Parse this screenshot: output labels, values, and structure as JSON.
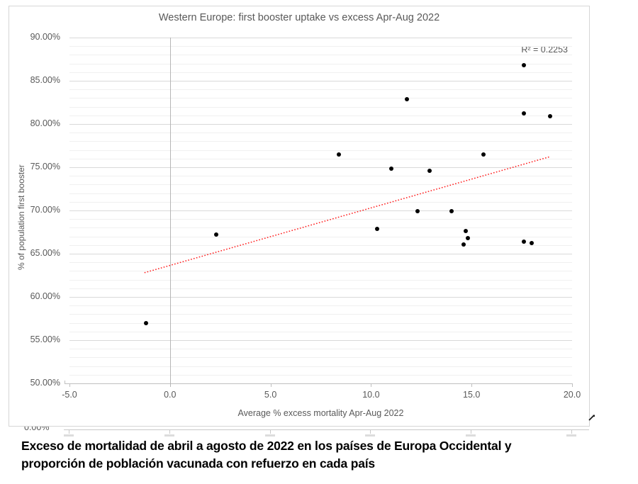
{
  "chart_data": {
    "type": "scatter",
    "title": "Western Europe: first booster uptake vs excess Apr-Aug 2022",
    "xlabel": "Average % excess mortality Apr-Aug 2022",
    "ylabel": "% of population first booster",
    "xlim": [
      -5,
      20
    ],
    "ylim": [
      50,
      90
    ],
    "x_tick_values": [
      -5,
      0,
      5,
      10,
      15,
      20
    ],
    "x_tick_labels": [
      "-5.0",
      "0.0",
      "5.0",
      "10.0",
      "15.0",
      "20.0"
    ],
    "y_tick_values": [
      90,
      85,
      80,
      75,
      70,
      65,
      60,
      55,
      50
    ],
    "y_tick_labels": [
      "90.00%",
      "85.00%",
      "80.00%",
      "75.00%",
      "70.00%",
      "65.00%",
      "60.00%",
      "55.00%",
      "50.00%"
    ],
    "grid": {
      "minor_step": 1,
      "major_step": 5
    },
    "legend_position": "none",
    "r_squared_label": "R² = 0.2253",
    "points": [
      {
        "x": -1.2,
        "y": 57.0
      },
      {
        "x": 2.3,
        "y": 67.2
      },
      {
        "x": 8.4,
        "y": 76.5
      },
      {
        "x": 10.3,
        "y": 67.9
      },
      {
        "x": 11.0,
        "y": 74.8
      },
      {
        "x": 11.8,
        "y": 82.9
      },
      {
        "x": 12.3,
        "y": 69.9
      },
      {
        "x": 12.9,
        "y": 74.6
      },
      {
        "x": 14.0,
        "y": 69.9
      },
      {
        "x": 14.6,
        "y": 66.1
      },
      {
        "x": 14.7,
        "y": 67.6
      },
      {
        "x": 14.8,
        "y": 66.8
      },
      {
        "x": 15.6,
        "y": 76.5
      },
      {
        "x": 17.6,
        "y": 86.8
      },
      {
        "x": 17.6,
        "y": 81.2
      },
      {
        "x": 17.6,
        "y": 66.4
      },
      {
        "x": 18.0,
        "y": 66.2
      },
      {
        "x": 18.9,
        "y": 80.9
      }
    ],
    "trendline": {
      "x1": -1.27,
      "y1": 62.8,
      "x2": 18.87,
      "y2": 76.2,
      "style": "dotted"
    },
    "colors": {
      "point": "#000000",
      "trendline": "#ff1a1a",
      "grid_minor": "#f0f0f0",
      "grid_major": "#d9d9d9",
      "axis": "#bfbfbf",
      "text": "#595959"
    }
  },
  "partial_chart": {
    "y_tick_label": "0.00%"
  },
  "caption": {
    "line1": "Exceso de mortalidad de abril a agosto de 2022 en los países de Europa Occidental y",
    "line2": "proporción de población vacunada con refuerzo en cada país"
  }
}
